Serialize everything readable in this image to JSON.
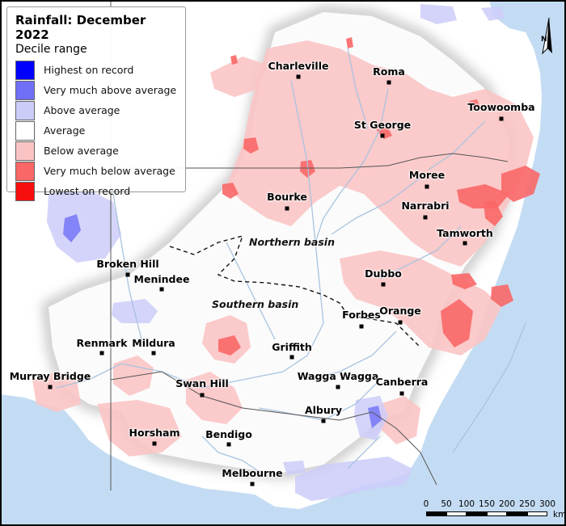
{
  "legend": {
    "title": "Rainfall: December 2022",
    "subtitle": "Decile range",
    "items": [
      {
        "label": "Highest on record",
        "color": "#0000ff"
      },
      {
        "label": "Very much above average",
        "color": "#6f6ff7"
      },
      {
        "label": "Above average",
        "color": "#ccccf9"
      },
      {
        "label": "Average",
        "color": "#ffffff"
      },
      {
        "label": "Below average",
        "color": "#fbc4c4"
      },
      {
        "label": "Very much below average",
        "color": "#f96767"
      },
      {
        "label": "Lowest on record",
        "color": "#f70f0f"
      }
    ]
  },
  "places": [
    {
      "name": "Charleville"
    },
    {
      "name": "Roma"
    },
    {
      "name": "Toowoomba"
    },
    {
      "name": "St George"
    },
    {
      "name": "Moree"
    },
    {
      "name": "Bourke"
    },
    {
      "name": "Narrabri"
    },
    {
      "name": "Tamworth"
    },
    {
      "name": "Broken Hill"
    },
    {
      "name": "Menindee"
    },
    {
      "name": "Dubbo"
    },
    {
      "name": "Forbes"
    },
    {
      "name": "Orange"
    },
    {
      "name": "Renmark"
    },
    {
      "name": "Mildura"
    },
    {
      "name": "Griffith"
    },
    {
      "name": "Murray Bridge"
    },
    {
      "name": "Swan Hill"
    },
    {
      "name": "Wagga Wagga"
    },
    {
      "name": "Canberra"
    },
    {
      "name": "Albury"
    },
    {
      "name": "Horsham"
    },
    {
      "name": "Bendigo"
    },
    {
      "name": "Melbourne"
    }
  ],
  "basins": {
    "northern": "Northern basin",
    "southern": "Southern basin"
  },
  "scale_bar": {
    "ticks": [
      "0",
      "50",
      "100",
      "150",
      "200",
      "250",
      "300"
    ],
    "unit": "km"
  },
  "north_arrow": {
    "label": "N",
    "icon": "north-arrow-icon"
  },
  "colors": {
    "sea": "#c4dcf3",
    "land": "#ffffff",
    "river": "#a9c3df",
    "border": "#555555"
  }
}
